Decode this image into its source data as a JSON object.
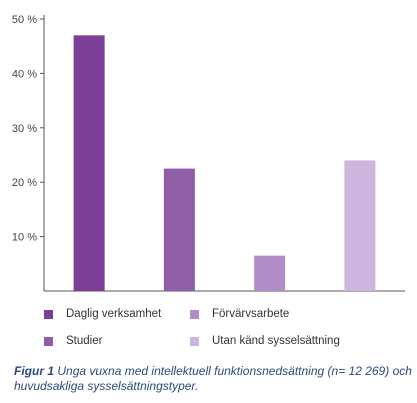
{
  "chart_data": {
    "type": "bar",
    "categories": [
      "Daglig verksamhet",
      "Studier",
      "Förvärvsarbete",
      "Utan känd sysselsättning"
    ],
    "values": [
      47,
      22.5,
      6.5,
      24
    ],
    "ylim": [
      0,
      50
    ],
    "yticks": [
      10,
      20,
      30,
      40,
      50
    ],
    "ytick_labels": [
      "10 %",
      "20 %",
      "30 %",
      "40 %",
      "50 %"
    ],
    "colors": [
      "#7b3f98",
      "#8f5ea7",
      "#b08dc4",
      "#cdb5dd"
    ],
    "grid": false,
    "legend_position": "bottom"
  },
  "legend": {
    "items": [
      {
        "label": "Daglig verksamhet",
        "color": "#7b3f98"
      },
      {
        "label": "Förvärvsarbete",
        "color": "#b08dc4"
      },
      {
        "label": "Studier",
        "color": "#8f5ea7"
      },
      {
        "label": "Utan känd sysselsättning",
        "color": "#cdb5dd"
      }
    ]
  },
  "caption": {
    "label": "Figur 1",
    "text": " Unga vuxna med intellektuell funktionsnedsättning (n= 12 269) och huvudsakliga sysselsättningstyper."
  }
}
